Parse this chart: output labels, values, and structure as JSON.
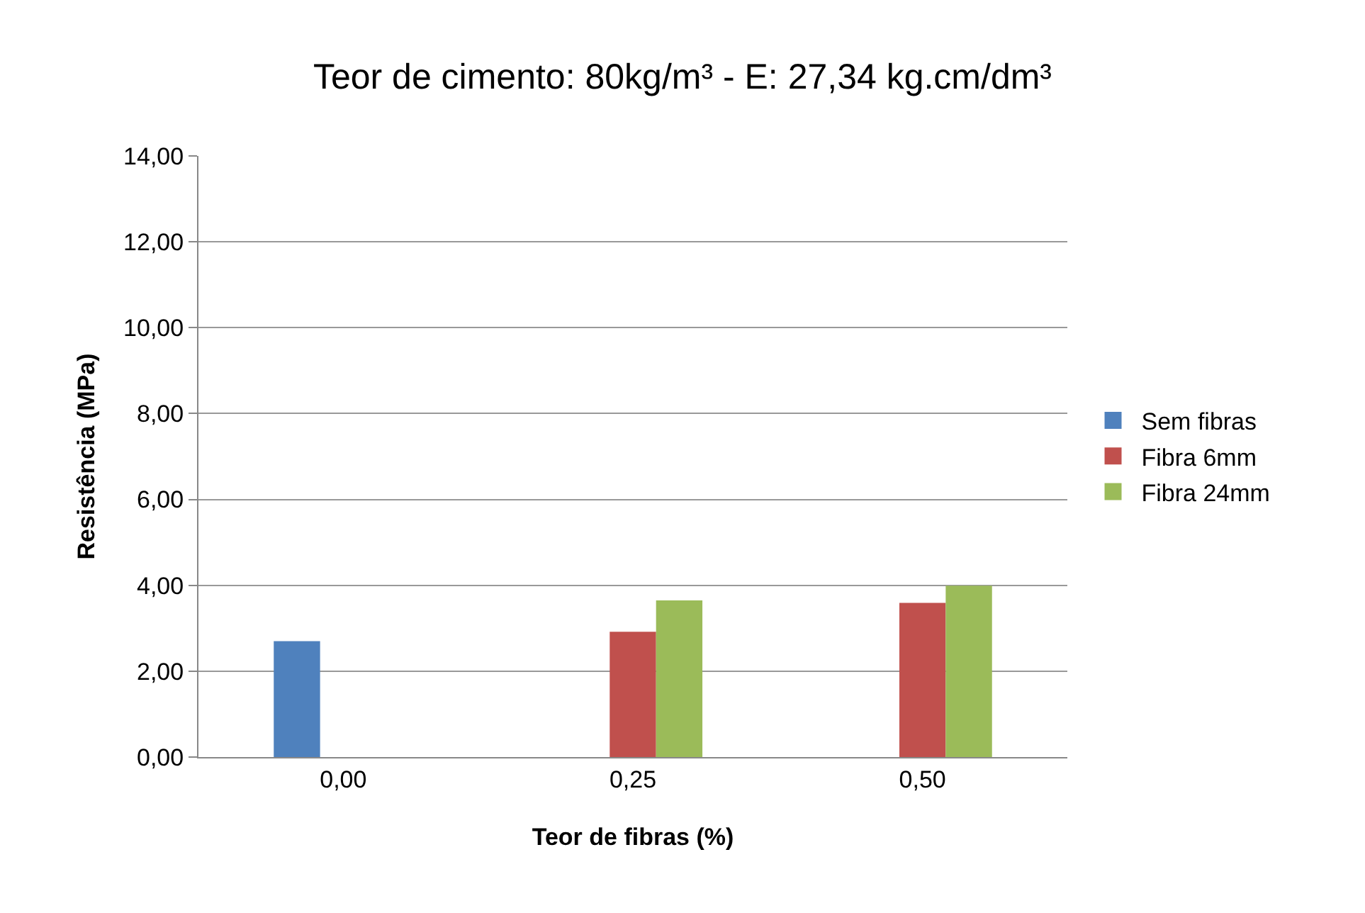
{
  "chart_data": {
    "type": "bar",
    "title": "Teor de cimento: 80kg/m³ - E: 27,34 kg.cm/dm³",
    "xlabel": "Teor de fibras (%)",
    "ylabel": "Resistência (MPa)",
    "categories": [
      "0,00",
      "0,25",
      "0,50"
    ],
    "series": [
      {
        "name": "Sem fibras",
        "color": "#4f81bd",
        "values": [
          2.7,
          null,
          null
        ]
      },
      {
        "name": "Fibra 6mm",
        "color": "#c0504d",
        "values": [
          null,
          2.92,
          3.59
        ]
      },
      {
        "name": "Fibra 24mm",
        "color": "#9bbb59",
        "values": [
          null,
          3.65,
          3.99
        ]
      }
    ],
    "ylim": [
      0,
      14
    ],
    "yticks": [
      {
        "value": 0,
        "label": "0,00"
      },
      {
        "value": 2,
        "label": "2,00"
      },
      {
        "value": 4,
        "label": "4,00"
      },
      {
        "value": 6,
        "label": "6,00"
      },
      {
        "value": 8,
        "label": "8,00"
      },
      {
        "value": 10,
        "label": "10,00"
      },
      {
        "value": 12,
        "label": "12,00"
      },
      {
        "value": 14,
        "label": "14,00"
      }
    ],
    "grid": "y",
    "legend": "right"
  }
}
